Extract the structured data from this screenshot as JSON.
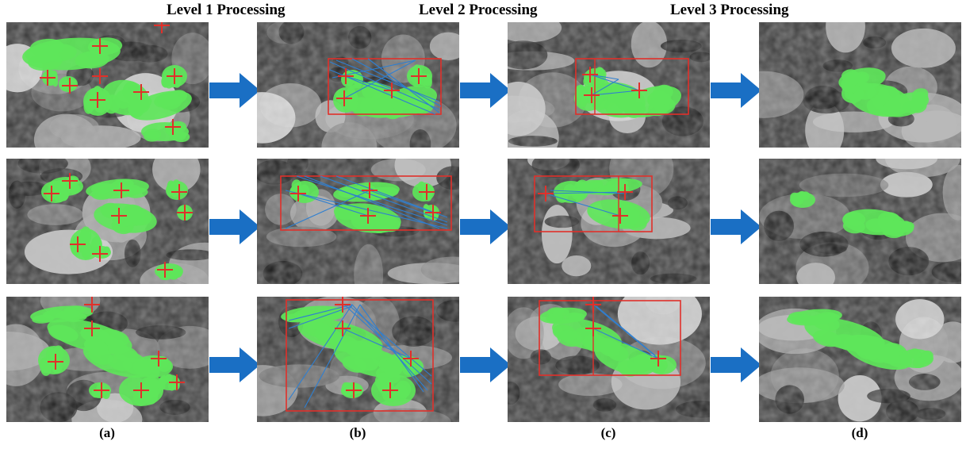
{
  "titles": {
    "level1": "Level 1 Processing",
    "level2": "Level 2 Processing",
    "level3": "Level 3 Processing"
  },
  "columns": [
    "(a)",
    "(b)",
    "(c)",
    "(d)"
  ],
  "colors": {
    "segmentation": "#5ee65a",
    "marker": "#e0302a",
    "bounding_box": "#e0302a",
    "connection_line": "#2f7fd0",
    "arrow": "#1a6fc4"
  }
}
